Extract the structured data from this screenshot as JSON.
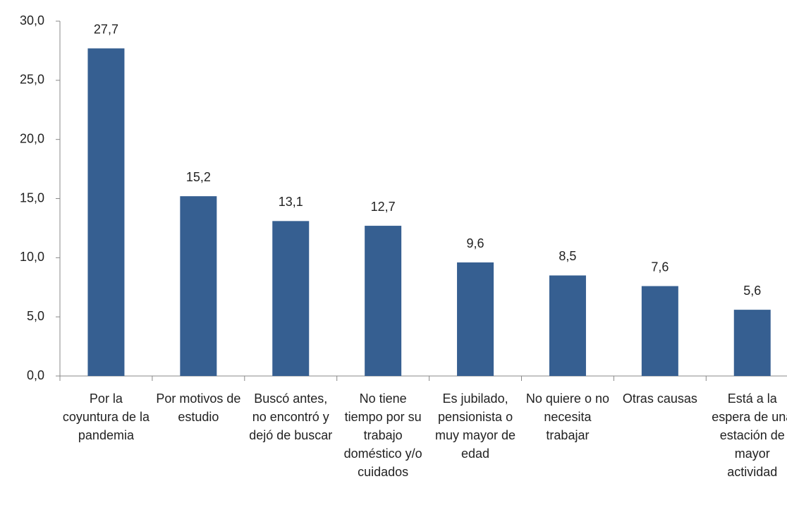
{
  "chart_data": {
    "type": "bar",
    "categories": [
      "Por la coyuntura de la pandemia",
      "Por motivos de estudio",
      "Buscó antes, no encontró y dejó de buscar",
      "No tiene tiempo por su trabajo doméstico y/o cuidados",
      "Es jubilado, pensionista o muy mayor de edad",
      "No quiere o no necesita trabajar",
      "Otras causas",
      "Está a la espera de una estación de mayor actividad"
    ],
    "values": [
      27.7,
      15.2,
      13.1,
      12.7,
      9.6,
      8.5,
      7.6,
      5.6
    ],
    "value_labels": [
      "27,7",
      "15,2",
      "13,1",
      "12,7",
      "9,6",
      "8,5",
      "7,6",
      "5,6"
    ],
    "color": "#365f91",
    "ylim": [
      0,
      30
    ],
    "yticks": [
      {
        "value": 0,
        "label": "0,0"
      },
      {
        "value": 5,
        "label": "5,0"
      },
      {
        "value": 10,
        "label": "10,0"
      },
      {
        "value": 15,
        "label": "15,0"
      },
      {
        "value": 20,
        "label": "20,0"
      },
      {
        "value": 25,
        "label": "25,0"
      },
      {
        "value": 30,
        "label": "30,0"
      }
    ],
    "grid": false
  }
}
